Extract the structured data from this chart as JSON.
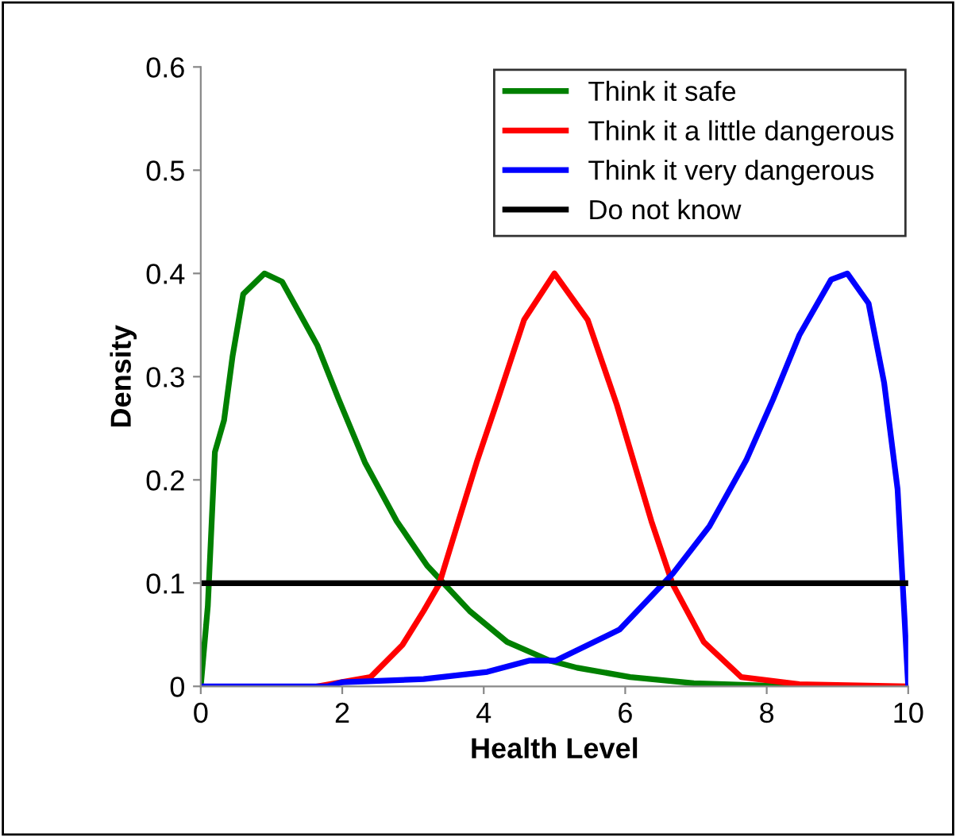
{
  "chart_data": {
    "type": "line",
    "xlabel": "Health Level",
    "ylabel": "Density",
    "xlim": [
      0,
      10
    ],
    "xticks": [
      0,
      2,
      4,
      6,
      8,
      10
    ],
    "ylim": [
      0,
      0.6
    ],
    "yticks": [
      0,
      0.1,
      0.2,
      0.3,
      0.4,
      0.5,
      0.6
    ],
    "grid": false,
    "legend": "top right",
    "marker": "none",
    "line_style": "solid",
    "series": [
      {
        "name": "Think it safe",
        "color": "#008000",
        "x": [
          0,
          0.1,
          0.2,
          0.33,
          0.45,
          0.6,
          0.9,
          1.15,
          1.65,
          1.95,
          2.32,
          2.77,
          3.2,
          3.8,
          4.33,
          4.93,
          5.32,
          6.07,
          6.97,
          8.3
        ],
        "values": [
          0,
          0.078,
          0.227,
          0.258,
          0.32,
          0.38,
          0.4,
          0.392,
          0.33,
          0.278,
          0.217,
          0.16,
          0.117,
          0.073,
          0.043,
          0.025,
          0.018,
          0.009,
          0.003,
          0
        ]
      },
      {
        "name": "Think it a little dangerous",
        "color": "#ff0000",
        "x": [
          1.65,
          2.4,
          2.85,
          3.15,
          3.37,
          3.67,
          3.9,
          4.2,
          4.57,
          5.0,
          5.47,
          5.88,
          6.37,
          6.67,
          7.11,
          7.64,
          8.46,
          10
        ],
        "values": [
          0,
          0.009,
          0.04,
          0.073,
          0.099,
          0.166,
          0.217,
          0.278,
          0.355,
          0.4,
          0.355,
          0.273,
          0.16,
          0.099,
          0.043,
          0.009,
          0.002,
          0
        ]
      },
      {
        "name": "Think it very dangerous",
        "color": "#0000ff",
        "x": [
          0,
          1.8,
          2,
          3.15,
          4.05,
          4.65,
          5.02,
          5.92,
          6.67,
          7.19,
          7.71,
          8.09,
          8.46,
          8.91,
          9.14,
          9.44,
          9.66,
          9.85,
          10
        ],
        "values": [
          0,
          0,
          0.004,
          0.007,
          0.014,
          0.025,
          0.025,
          0.055,
          0.109,
          0.155,
          0.219,
          0.278,
          0.34,
          0.394,
          0.4,
          0.371,
          0.294,
          0.191,
          0
        ]
      },
      {
        "name": "Do not know",
        "color": "#000000",
        "x": [
          0,
          10
        ],
        "values": [
          0.1,
          0.1
        ]
      }
    ]
  }
}
